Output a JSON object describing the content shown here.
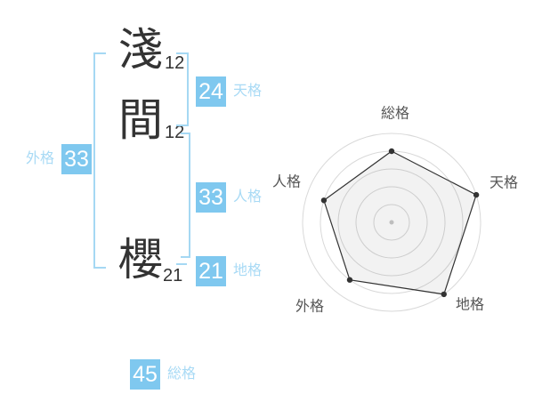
{
  "name_display": {
    "characters": [
      {
        "char": "淺",
        "strokes": "12"
      },
      {
        "char": "間",
        "strokes": "12"
      },
      {
        "char": "櫻",
        "strokes": "21"
      }
    ]
  },
  "kaku_badges": {
    "tenkaku": {
      "value": "24",
      "label": "天格"
    },
    "jinkaku": {
      "value": "33",
      "label": "人格"
    },
    "chikaku": {
      "value": "21",
      "label": "地格"
    },
    "gaikaku": {
      "value": "33",
      "label": "外格"
    },
    "soukaku": {
      "value": "45",
      "label": "総格"
    }
  },
  "colors": {
    "badge_blue": "#7fc8ef",
    "bracket_blue": "#a5d8f3",
    "label_blue": "#a8daf5",
    "text_dark": "#333333",
    "radar_ring": "#d9d9d9",
    "radar_line": "#333333",
    "radar_fill": "rgba(0,0,0,0.05)",
    "radar_label": "#555555",
    "radar_center_dot": "#c9c9c9"
  },
  "chart_data": {
    "type": "radar",
    "axes": [
      "総格",
      "天格",
      "地格",
      "外格",
      "人格"
    ],
    "values": [
      4,
      5,
      5,
      4,
      4
    ],
    "max": 5,
    "rings": 5,
    "grid": "circular",
    "legend": "none",
    "title": ""
  }
}
